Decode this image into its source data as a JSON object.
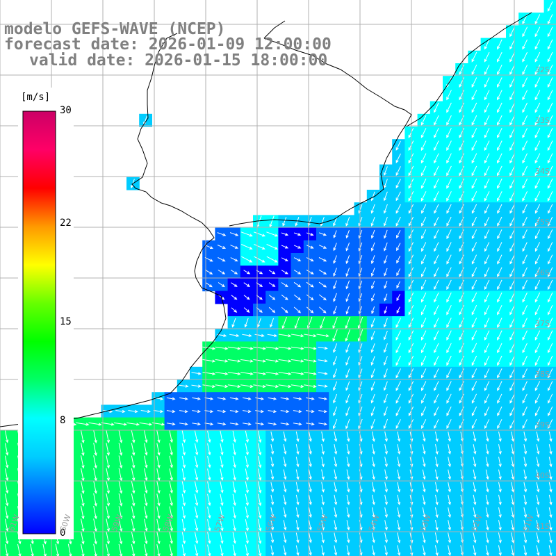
{
  "header": {
    "model_line": "modelo GEFS-WAVE (NCEP)",
    "forecast_line": "forecast date: 2026-01-09 12:00:00",
    "valid_line": "valid date: 2026-01-15 18:00:00"
  },
  "colorbar": {
    "unit": "[m/s]",
    "ticks": [
      {
        "value": 30,
        "label": "30"
      },
      {
        "value": 22,
        "label": "22"
      },
      {
        "value": 15,
        "label": "15"
      },
      {
        "value": 8,
        "label": "8"
      },
      {
        "value": 0,
        "label": "0"
      }
    ],
    "range": [
      0,
      30
    ],
    "colors": [
      "#0000ff",
      "#0066ff",
      "#00ccff",
      "#00ffff",
      "#00ff66",
      "#00ff00",
      "#66ff00",
      "#ffff00",
      "#ff9900",
      "#ff0000",
      "#ff0066",
      "#cc0066"
    ]
  },
  "lat_labels": [
    "32S",
    "33S",
    "34S",
    "35S",
    "36S",
    "37S",
    "38S",
    "39S",
    "40S",
    "41S"
  ],
  "lon_labels": [
    "61W",
    "60W",
    "59W",
    "58W",
    "57W",
    "56W",
    "55W",
    "54W",
    "53W",
    "52W",
    "51W"
  ],
  "map": {
    "lon_range": [
      -61,
      -50
    ],
    "lat_range": [
      -41.6,
      -31.2
    ],
    "land_color": "#ffffff",
    "coast_color": "#000000",
    "grid_color": "#b0b0b0",
    "arrow_color": "#ffffff",
    "wind_description": "predominantly southward winds offshore, stronger (green) near coast in the south"
  }
}
